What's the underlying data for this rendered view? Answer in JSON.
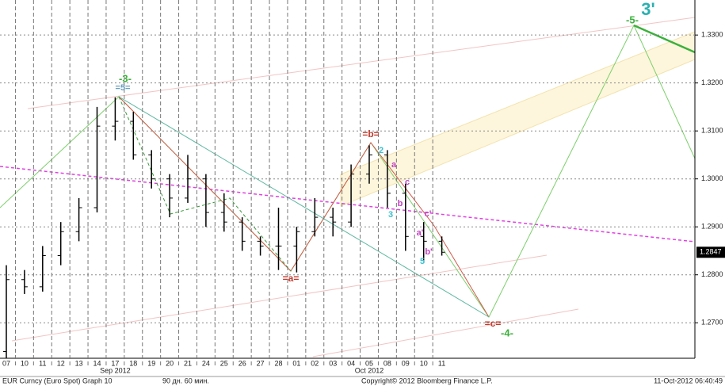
{
  "chart_data": {
    "type": "candlestick",
    "categories": [
      "07",
      "10",
      "11",
      "12",
      "13",
      "14",
      "17",
      "18",
      "19",
      "20",
      "21",
      "24",
      "25",
      "26",
      "27",
      "28",
      "01",
      "02",
      "03",
      "04",
      "05",
      "08",
      "09",
      "10",
      "11"
    ],
    "open": [
      1.264,
      1.279,
      1.2775,
      1.284,
      1.289,
      1.294,
      1.311,
      1.312,
      1.305,
      1.3,
      1.296,
      1.3,
      1.293,
      1.291,
      1.287,
      1.286,
      1.286,
      1.289,
      1.292,
      1.291,
      1.301,
      1.305,
      1.297,
      1.288,
      1.287
    ],
    "high": [
      1.282,
      1.281,
      1.286,
      1.291,
      1.296,
      1.315,
      1.317,
      1.314,
      1.306,
      1.301,
      1.305,
      1.301,
      1.297,
      1.292,
      1.288,
      1.294,
      1.29,
      1.296,
      1.294,
      1.303,
      1.307,
      1.306,
      1.299,
      1.291,
      1.288
    ],
    "low": [
      1.2626,
      1.276,
      1.2765,
      1.282,
      1.287,
      1.293,
      1.308,
      1.304,
      1.298,
      1.292,
      1.295,
      1.29,
      1.289,
      1.285,
      1.284,
      1.281,
      1.2805,
      1.288,
      1.288,
      1.29,
      1.299,
      1.294,
      1.285,
      1.283,
      1.284
    ],
    "close": [
      1.279,
      1.2775,
      1.284,
      1.289,
      1.294,
      1.311,
      1.312,
      1.305,
      1.3,
      1.296,
      1.3,
      1.293,
      1.291,
      1.287,
      1.286,
      1.286,
      1.289,
      1.292,
      1.291,
      1.301,
      1.305,
      1.297,
      1.288,
      1.287,
      1.2847
    ],
    "color": "#000000",
    "month_labels": [
      "Sep 2012",
      "Oct 2012"
    ],
    "ylim": [
      1.2626,
      1.3373
    ],
    "yticks": [
      {
        "value": 1.27,
        "label": "1.2700"
      },
      {
        "value": 1.28,
        "label": "1.2800"
      },
      {
        "value": 1.29,
        "label": "1.2900"
      },
      {
        "value": 1.3,
        "label": "1.3000"
      },
      {
        "value": 1.31,
        "label": "1.3100"
      },
      {
        "value": 1.32,
        "label": "1.3200"
      },
      {
        "value": 1.33,
        "label": "1.3300"
      }
    ],
    "last_price": 1.2847,
    "grid": true,
    "annotations": [
      "-3-",
      "=5=",
      "=b=",
      "=a=",
      "=c=",
      "-4-",
      "-5-",
      "3'",
      "2",
      "3",
      "5",
      "a",
      "b",
      "c",
      "c'",
      "a'",
      "b'"
    ],
    "footer": [
      "EUR Curncy (Euro Spot) Graph 10",
      "90 дн. 60 мин.",
      "Copyright© 2012 Bloomberg Finance L.P.",
      "11-Oct-2012 06:40:49"
    ]
  }
}
